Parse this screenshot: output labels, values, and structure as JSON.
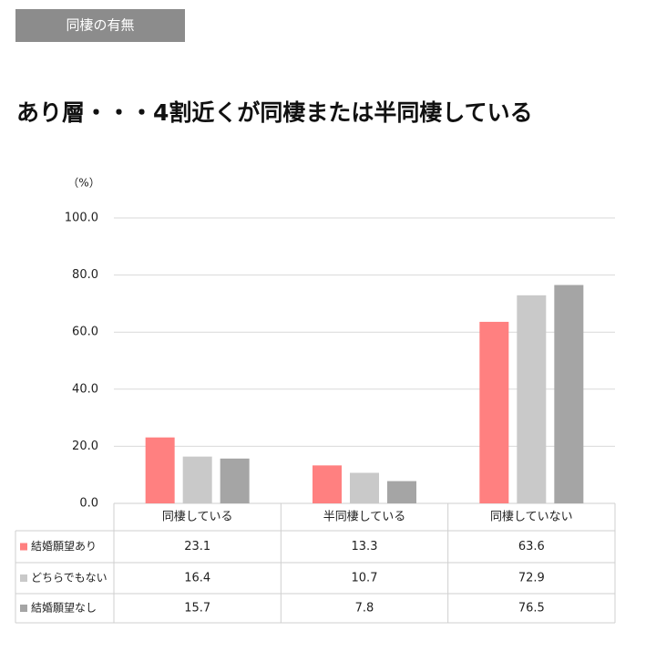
{
  "header": {
    "tag": "同棲の有無"
  },
  "chart_data": {
    "type": "bar",
    "title": "あり層・・・4割近くが同棲または半同棲している",
    "y_unit": "（%）",
    "categories": [
      "同棲している",
      "半同棲している",
      "同棲していない"
    ],
    "series": [
      {
        "name": "結婚願望あり",
        "color": "#ff8080",
        "values": [
          23.1,
          13.3,
          63.6
        ]
      },
      {
        "name": "どちらでもない",
        "color": "#c9c9c9",
        "values": [
          16.4,
          10.7,
          72.9
        ]
      },
      {
        "name": "結婚願望なし",
        "color": "#a5a5a5",
        "values": [
          15.7,
          7.8,
          76.5
        ]
      }
    ],
    "ylim": [
      0,
      100
    ],
    "yticks": [
      {
        "value": 0,
        "label": "0.0"
      },
      {
        "value": 20,
        "label": "20.0"
      },
      {
        "value": 40,
        "label": "40.0"
      },
      {
        "value": 60,
        "label": "60.0"
      },
      {
        "value": 80,
        "label": "80.0"
      },
      {
        "value": 100,
        "label": "100.0"
      }
    ],
    "grid": true
  }
}
